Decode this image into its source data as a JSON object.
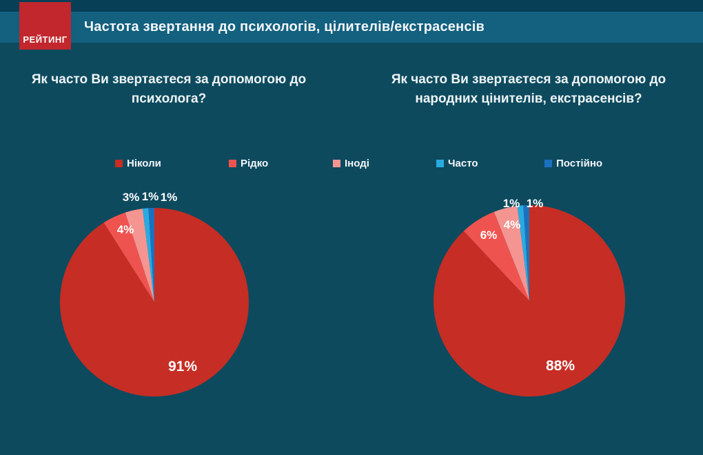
{
  "header": {
    "logo_text": "РЕЙТИНГ",
    "title": "Частота звертання до психологів, цілителів/екстрасенсів"
  },
  "questions": {
    "left": "Як часто Ви звертаєтеся за допомогою до психолога?",
    "right": "Як часто Ви звертаєтеся за допомогою до народних цінителів, екстрасенсів?"
  },
  "legend": {
    "items": [
      {
        "label": "Ніколи",
        "color": "#c62d24"
      },
      {
        "label": "Рідко",
        "color": "#ef5350"
      },
      {
        "label": "Іноді",
        "color": "#f49592"
      },
      {
        "label": "Часто",
        "color": "#29abe2"
      },
      {
        "label": "Постійно",
        "color": "#1c71bf"
      }
    ]
  },
  "chart_data": [
    {
      "type": "pie",
      "title": "Як часто Ви звертаєтеся за допомогою до психолога?",
      "categories": [
        "Ніколи",
        "Рідко",
        "Іноді",
        "Часто",
        "Постійно"
      ],
      "values": [
        91,
        4,
        3,
        1,
        1
      ],
      "labels": [
        "91%",
        "4%",
        "3%",
        "1%",
        "1%"
      ],
      "start_angle_deg": 0,
      "direction": "clockwise",
      "legend_position": "top"
    },
    {
      "type": "pie",
      "title": "Як часто Ви звертаєтеся за допомогою до народних цінителів, екстрасенсів?",
      "categories": [
        "Ніколи",
        "Рідко",
        "Іноді",
        "Часто",
        "Постійно"
      ],
      "values": [
        88,
        6,
        4,
        1,
        1
      ],
      "labels": [
        "88%",
        "6%",
        "4%",
        "1%",
        "1%"
      ],
      "start_angle_deg": 0,
      "direction": "clockwise",
      "legend_position": "top"
    }
  ],
  "colors": {
    "background": "#0d4a5e",
    "top_stripe": "#073f56",
    "title_band": "#13607f",
    "logo_red": "#c1272d",
    "text": "#f4f8fa"
  }
}
